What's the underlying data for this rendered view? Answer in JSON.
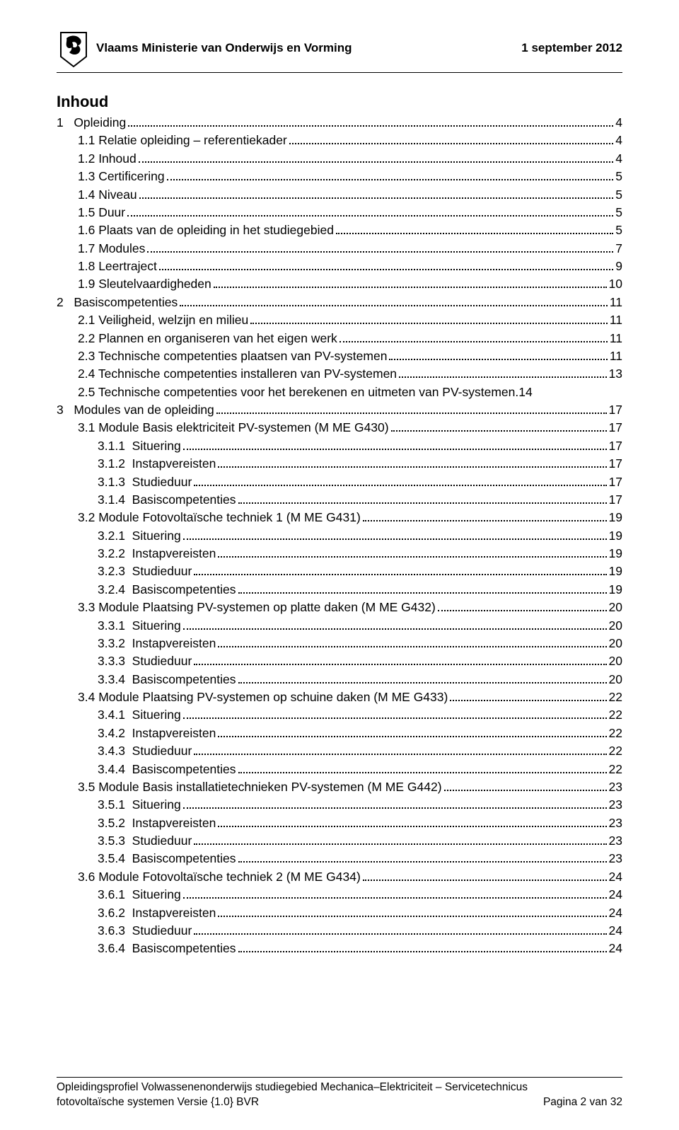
{
  "header": {
    "ministry": "Vlaams Ministerie van Onderwijs en Vorming",
    "date": "1 september 2012"
  },
  "toc_title": "Inhoud",
  "toc": [
    {
      "indent": 0,
      "label": "1   Opleiding",
      "page": "4"
    },
    {
      "indent": 1,
      "label": "1.1 Relatie opleiding – referentiekader",
      "page": "4"
    },
    {
      "indent": 1,
      "label": "1.2 Inhoud",
      "page": "4"
    },
    {
      "indent": 1,
      "label": "1.3 Certificering",
      "page": "5"
    },
    {
      "indent": 1,
      "label": "1.4 Niveau",
      "page": "5"
    },
    {
      "indent": 1,
      "label": "1.5 Duur",
      "page": "5"
    },
    {
      "indent": 1,
      "label": "1.6 Plaats van de opleiding in het studiegebied",
      "page": "5"
    },
    {
      "indent": 1,
      "label": "1.7 Modules",
      "page": "7"
    },
    {
      "indent": 1,
      "label": "1.8 Leertraject",
      "page": "9"
    },
    {
      "indent": 1,
      "label": "1.9 Sleutelvaardigheden",
      "page": "10"
    },
    {
      "indent": 0,
      "label": "2   Basiscompetenties",
      "page": "11"
    },
    {
      "indent": 1,
      "label": "2.1 Veiligheid, welzijn en milieu",
      "page": "11"
    },
    {
      "indent": 1,
      "label": "2.2 Plannen en organiseren van het eigen werk",
      "page": "11"
    },
    {
      "indent": 1,
      "label": "2.3 Technische competenties plaatsen van PV-systemen",
      "page": "11"
    },
    {
      "indent": 1,
      "label": "2.4 Technische competenties installeren van PV-systemen",
      "page": "13"
    },
    {
      "indent": 1,
      "label": "2.5 Technische competenties voor het berekenen en uitmeten van PV-systemen",
      "page": "14",
      "nodots": true
    },
    {
      "indent": 0,
      "label": "3   Modules van de opleiding",
      "page": "17"
    },
    {
      "indent": 1,
      "label": "3.1 Module Basis elektriciteit PV-systemen (M ME G430)",
      "page": "17"
    },
    {
      "indent": 2,
      "label": "3.1.1  Situering",
      "page": "17"
    },
    {
      "indent": 2,
      "label": "3.1.2  Instapvereisten",
      "page": "17"
    },
    {
      "indent": 2,
      "label": "3.1.3  Studieduur",
      "page": "17"
    },
    {
      "indent": 2,
      "label": "3.1.4  Basiscompetenties",
      "page": "17"
    },
    {
      "indent": 1,
      "label": "3.2 Module Fotovoltaïsche techniek 1 (M ME G431)",
      "page": "19"
    },
    {
      "indent": 2,
      "label": "3.2.1  Situering",
      "page": "19"
    },
    {
      "indent": 2,
      "label": "3.2.2  Instapvereisten",
      "page": "19"
    },
    {
      "indent": 2,
      "label": "3.2.3  Studieduur",
      "page": "19"
    },
    {
      "indent": 2,
      "label": "3.2.4  Basiscompetenties",
      "page": "19"
    },
    {
      "indent": 1,
      "label": "3.3 Module Plaatsing PV-systemen op platte daken (M ME G432)",
      "page": "20"
    },
    {
      "indent": 2,
      "label": "3.3.1  Situering",
      "page": "20"
    },
    {
      "indent": 2,
      "label": "3.3.2  Instapvereisten",
      "page": "20"
    },
    {
      "indent": 2,
      "label": "3.3.3  Studieduur",
      "page": "20"
    },
    {
      "indent": 2,
      "label": "3.3.4  Basiscompetenties",
      "page": "20"
    },
    {
      "indent": 1,
      "label": "3.4 Module Plaatsing PV-systemen op schuine daken (M ME G433)",
      "page": "22"
    },
    {
      "indent": 2,
      "label": "3.4.1  Situering",
      "page": "22"
    },
    {
      "indent": 2,
      "label": "3.4.2  Instapvereisten",
      "page": "22"
    },
    {
      "indent": 2,
      "label": "3.4.3  Studieduur",
      "page": "22"
    },
    {
      "indent": 2,
      "label": "3.4.4  Basiscompetenties",
      "page": "22"
    },
    {
      "indent": 1,
      "label": "3.5 Module Basis installatietechnieken PV-systemen (M ME G442)",
      "page": "23"
    },
    {
      "indent": 2,
      "label": "3.5.1  Situering",
      "page": "23"
    },
    {
      "indent": 2,
      "label": "3.5.2  Instapvereisten",
      "page": "23"
    },
    {
      "indent": 2,
      "label": "3.5.3  Studieduur",
      "page": "23"
    },
    {
      "indent": 2,
      "label": "3.5.4  Basiscompetenties",
      "page": "23"
    },
    {
      "indent": 1,
      "label": "3.6 Module Fotovoltaïsche techniek 2 (M ME G434)",
      "page": "24"
    },
    {
      "indent": 2,
      "label": "3.6.1  Situering",
      "page": "24"
    },
    {
      "indent": 2,
      "label": "3.6.2  Instapvereisten",
      "page": "24"
    },
    {
      "indent": 2,
      "label": "3.6.3  Studieduur",
      "page": "24"
    },
    {
      "indent": 2,
      "label": "3.6.4  Basiscompetenties",
      "page": "24"
    }
  ],
  "footer": {
    "line1": "Opleidingsprofiel Volwassenenonderwijs studiegebied Mechanica–Elektriciteit – Servicetechnicus",
    "line2_left": "fotovoltaïsche systemen Versie {1.0} BVR",
    "line2_right": "Pagina 2 van 32"
  },
  "colors": {
    "text": "#000000",
    "background": "#ffffff",
    "rule": "#000000"
  }
}
